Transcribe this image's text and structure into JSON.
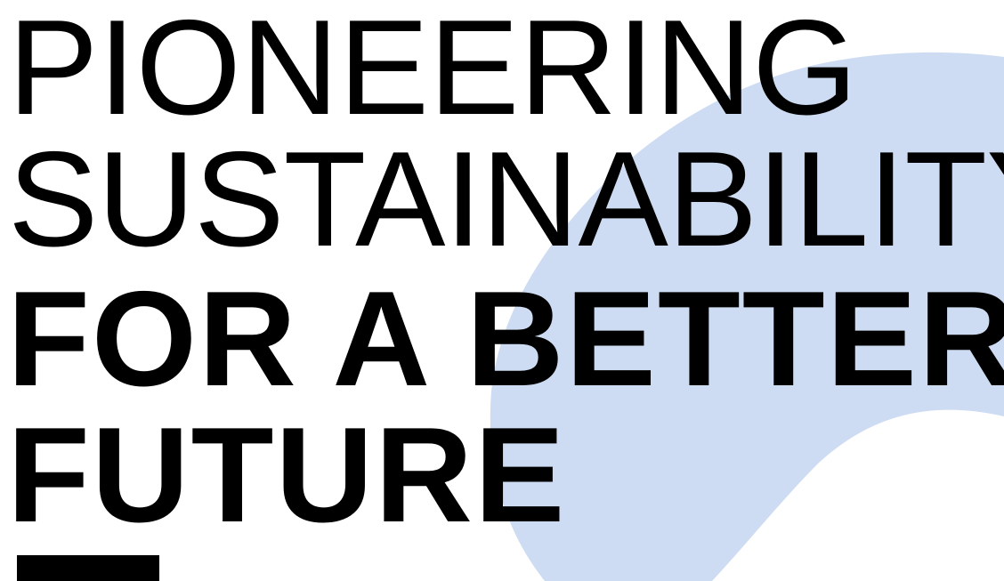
{
  "headline": {
    "line1": "PIONEERING",
    "line2": "SUSTAINABILITY",
    "line3": "FOR A BETTER",
    "line4": "FUTURE"
  },
  "colors": {
    "background": "#ffffff",
    "text": "#000000",
    "blob": "#cddcf2",
    "accent_bar": "#000000"
  },
  "decorations": {
    "blob_shape": "organic-blob",
    "accent_bar": "horizontal-rule"
  }
}
